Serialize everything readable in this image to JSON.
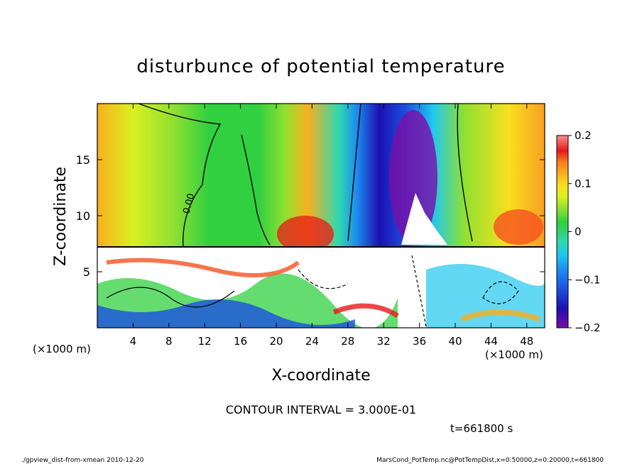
{
  "chart_data": {
    "type": "heatmap",
    "title": "disturbunce of potential temperature",
    "xlabel": "X-coordinate",
    "ylabel": "Z-coordinate",
    "x_unit_left": "(×1000 m)",
    "x_unit_right": "(×1000 m)",
    "xlim": [
      0,
      50
    ],
    "ylim": [
      0,
      20
    ],
    "xticks": [
      "4",
      "8",
      "12",
      "16",
      "20",
      "24",
      "28",
      "32",
      "36",
      "40",
      "44",
      "48"
    ],
    "xtick_values": [
      4,
      8,
      12,
      16,
      20,
      24,
      28,
      32,
      36,
      40,
      44,
      48
    ],
    "yticks": [
      "5",
      "10",
      "15"
    ],
    "ytick_values": [
      5,
      10,
      15
    ],
    "colorbar": {
      "range": [
        -0.2,
        0.2
      ],
      "tick_labels": [
        "0.2",
        "0.1",
        "0",
        "−0.1",
        "−0.2"
      ],
      "tick_values": [
        0.2,
        0.1,
        0,
        -0.1,
        -0.2
      ],
      "colors": [
        "#7b0ea8",
        "#1c10b0",
        "#1c50e0",
        "#1c8cf0",
        "#20c8f0",
        "#2ed8b0",
        "#30d070",
        "#30d040",
        "#90e030",
        "#d8f020",
        "#f8e020",
        "#f8b020",
        "#f88020",
        "#f85020",
        "#e81818",
        "#f89090"
      ]
    },
    "contour_label": "0.00",
    "contour_interval_text": "CONTOUR INTERVAL = 3.000E-01",
    "time_text": "t=661800 s"
  },
  "footer": {
    "left": "./gpview_dist-from-xmean  2010-12-20",
    "right": "MarsCond_PotTemp.nc@PotTempDist,x=0:50000,z=0:20000,t=661800"
  }
}
